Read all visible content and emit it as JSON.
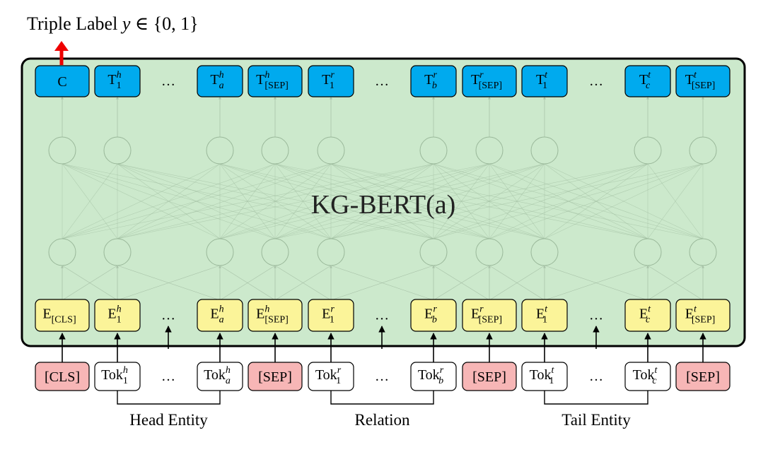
{
  "title": {
    "prefix": "Triple Label ",
    "var": "y",
    "rel": " ∈ {0, 1}"
  },
  "model_label": "KG-BERT(a)",
  "top_tokens": [
    {
      "base": "C"
    },
    {
      "base": "T",
      "sup": "h",
      "sub": "1"
    },
    {
      "base": "…",
      "ellipsis": true
    },
    {
      "base": "T",
      "sup": "h",
      "sub": "a"
    },
    {
      "base": "T",
      "sup": "h",
      "sub": "[SEP]"
    },
    {
      "base": "T",
      "sup": "r",
      "sub": "1"
    },
    {
      "base": "…",
      "ellipsis": true
    },
    {
      "base": "T",
      "sup": "r",
      "sub": "b"
    },
    {
      "base": "T",
      "sup": "r",
      "sub": "[SEP]"
    },
    {
      "base": "T",
      "sup": "t",
      "sub": "1"
    },
    {
      "base": "…",
      "ellipsis": true
    },
    {
      "base": "T",
      "sup": "t",
      "sub": "c"
    },
    {
      "base": "T",
      "sup": "t",
      "sub": "[SEP]"
    }
  ],
  "embeddings": [
    {
      "base": "E",
      "sub": "[CLS]"
    },
    {
      "base": "E",
      "sup": "h",
      "sub": "1"
    },
    {
      "base": "…",
      "ellipsis": true
    },
    {
      "base": "E",
      "sup": "h",
      "sub": "a"
    },
    {
      "base": "E",
      "sup": "h",
      "sub": "[SEP]"
    },
    {
      "base": "E",
      "sup": "r",
      "sub": "1"
    },
    {
      "base": "…",
      "ellipsis": true
    },
    {
      "base": "E",
      "sup": "r",
      "sub": "b"
    },
    {
      "base": "E",
      "sup": "r",
      "sub": "[SEP]"
    },
    {
      "base": "E",
      "sup": "t",
      "sub": "1"
    },
    {
      "base": "…",
      "ellipsis": true
    },
    {
      "base": "E",
      "sup": "t",
      "sub": "c"
    },
    {
      "base": "E",
      "sup": "t",
      "sub": "[SEP]"
    }
  ],
  "inputs": [
    {
      "base": "[CLS]",
      "special": true
    },
    {
      "base": "Tok",
      "sup": "h",
      "sub": "1"
    },
    {
      "base": "…",
      "ellipsis": true
    },
    {
      "base": "Tok",
      "sup": "h",
      "sub": "a"
    },
    {
      "base": "[SEP]",
      "special": true
    },
    {
      "base": "Tok",
      "sup": "r",
      "sub": "1"
    },
    {
      "base": "…",
      "ellipsis": true
    },
    {
      "base": "Tok",
      "sup": "r",
      "sub": "b"
    },
    {
      "base": "[SEP]",
      "special": true
    },
    {
      "base": "Tok",
      "sup": "t",
      "sub": "1"
    },
    {
      "base": "…",
      "ellipsis": true
    },
    {
      "base": "Tok",
      "sup": "t",
      "sub": "c"
    },
    {
      "base": "[SEP]",
      "special": true
    }
  ],
  "groups": [
    {
      "label": "Head Entity"
    },
    {
      "label": "Relation"
    },
    {
      "label": "Tail Entity"
    }
  ],
  "colors": {
    "model_fill": "#cce9cc",
    "top_fill": "#00aaee",
    "emb_fill": "#fbf499",
    "special_fill": "#f7b6b6",
    "input_fill": "#ffffff",
    "arrow_red": "#ee0000",
    "network": "#9ab89a"
  }
}
